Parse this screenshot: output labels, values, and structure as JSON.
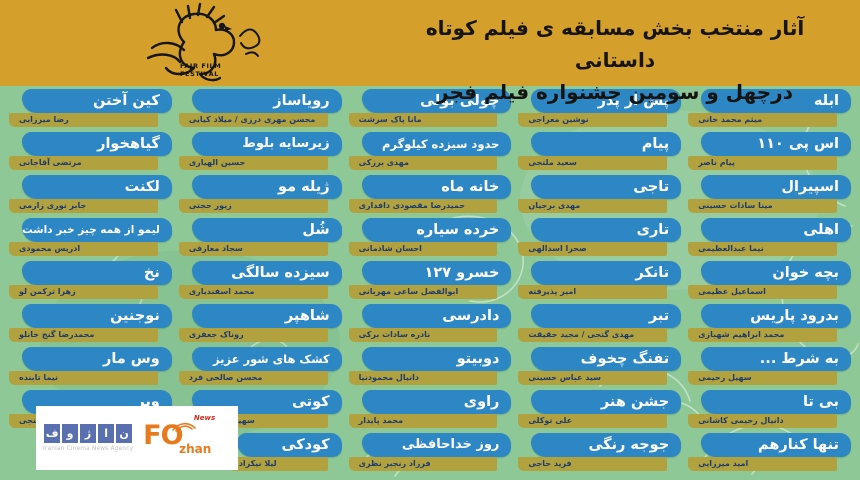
{
  "header": {
    "title_line1": "آثار منتخب بخش مسابقه ی فیلم کوتاه داستانی",
    "title_line2": "درچهل و سومین جشنواره فیلم فجر",
    "logo_caption_line1": "FAJR FILM",
    "logo_caption_line2": "FESTIVAL"
  },
  "colors": {
    "header_gold": "#d4a02b",
    "background_green": "#8ec897",
    "title_bar_blue": "#2e87c5",
    "director_bar_gold": "#b2a13f",
    "title_text": "#ffffff",
    "director_text": "#1e3d6e"
  },
  "columns": [
    {
      "entries": [
        {
          "title": "ابله",
          "director": "میثم محمد خانی"
        },
        {
          "title": "اس پی ۱۱۰",
          "director": "پیام ناصر"
        },
        {
          "title": "اسپیرال",
          "director": "مینا سادات حسینی"
        },
        {
          "title": "اهلی",
          "director": "نیما عبدالعظیمی"
        },
        {
          "title": "بچه خوان",
          "director": "اسماعیل عظیمی"
        },
        {
          "title": "بدرود پاریس",
          "director": "محمد ابراهیم شهبازی"
        },
        {
          "title": "به شرط ...",
          "director": "سهیل رحیمی"
        },
        {
          "title": "بی تا",
          "director": "دانیال رحیمی کاشانی"
        },
        {
          "title": "تنها کنارهم",
          "director": "امید میرزایی"
        }
      ]
    },
    {
      "entries": [
        {
          "title": "پس از پدر",
          "director": "نوشین معراجی"
        },
        {
          "title": "پیام",
          "director": "سعید ملتجی"
        },
        {
          "title": "تاجی",
          "director": "مهدی برجیان"
        },
        {
          "title": "تاری",
          "director": "صحرا اسدالهی"
        },
        {
          "title": "تانکر",
          "director": "امیر پذیرفته"
        },
        {
          "title": "تبر",
          "director": "مهدی گنجی / مجید حقیقت"
        },
        {
          "title": "تفنگ چخوف",
          "director": "سید عباس حسینی"
        },
        {
          "title": "جشن هنر",
          "director": "علی توکلی"
        },
        {
          "title": "جوجه رنگی",
          "director": "فرید حاجی"
        }
      ]
    },
    {
      "entries": [
        {
          "title": "چولی بولی",
          "director": "مانا پاک سرشت"
        },
        {
          "title": "حدود سیزده کیلوگرم",
          "director": "مهدی برزکی"
        },
        {
          "title": "خانه ماه",
          "director": "حمیدرضا مقصودی دافداری"
        },
        {
          "title": "خرده سیاره",
          "director": "احسان شادمانی"
        },
        {
          "title": "خسرو ۱۲۷",
          "director": "ابوالفضل ساعی مهربانی"
        },
        {
          "title": "دادرسی",
          "director": "نادره سادات برکی"
        },
        {
          "title": "دوبیتو",
          "director": "دانیال محمودنیا"
        },
        {
          "title": "راوی",
          "director": "محمد پایدار"
        },
        {
          "title": "روز خداحافظی",
          "director": "فرزاد رنجبر نظری"
        }
      ]
    },
    {
      "entries": [
        {
          "title": "رویاساز",
          "director": "محسن مهری درزی / میلاد کیایی"
        },
        {
          "title": "زیرسایه بلوط",
          "director": "حسین الهیاری"
        },
        {
          "title": "ژیله مو",
          "director": "زیور حجتی"
        },
        {
          "title": "شُل",
          "director": "سجاد معارفی"
        },
        {
          "title": "سیزده سالگی",
          "director": "محمد اسفندیاری"
        },
        {
          "title": "شاهپر",
          "director": "روناک جعفری"
        },
        {
          "title": "کشک های شور عزیز",
          "director": "محسن صالحی فرد"
        },
        {
          "title": "کوتی",
          "director": "سهیلا پورمحمدی"
        },
        {
          "title": "کودکی",
          "director": "لیلا نیکزاد"
        }
      ]
    },
    {
      "entries": [
        {
          "title": "کین آختن",
          "director": "رضا میرزایی"
        },
        {
          "title": "گیاهخوار",
          "director": "مرتضی آقاجانی"
        },
        {
          "title": "لکنت",
          "director": "جابر نوری زارمی"
        },
        {
          "title": "لیمو از همه چیز خبر داشت",
          "director": "ادریس محمودی"
        },
        {
          "title": "نخ",
          "director": "زهرا ترکمن لو"
        },
        {
          "title": "نوجنین",
          "director": "محمدرضا گنج خانلو"
        },
        {
          "title": "وس مار",
          "director": "نیما تابنده"
        },
        {
          "title": "ویر",
          "director": "جواد گنجی"
        }
      ]
    }
  ],
  "footer_logos": {
    "fozhan_fa_letters": [
      "ف",
      "و",
      "ژ",
      "ا",
      "ن"
    ],
    "fozhan_fa_caption": "Iranian Cinema News Agency",
    "fozhan_en_news": "News",
    "fozhan_en_main": "FO",
    "fozhan_en_suffix": "zhan"
  }
}
